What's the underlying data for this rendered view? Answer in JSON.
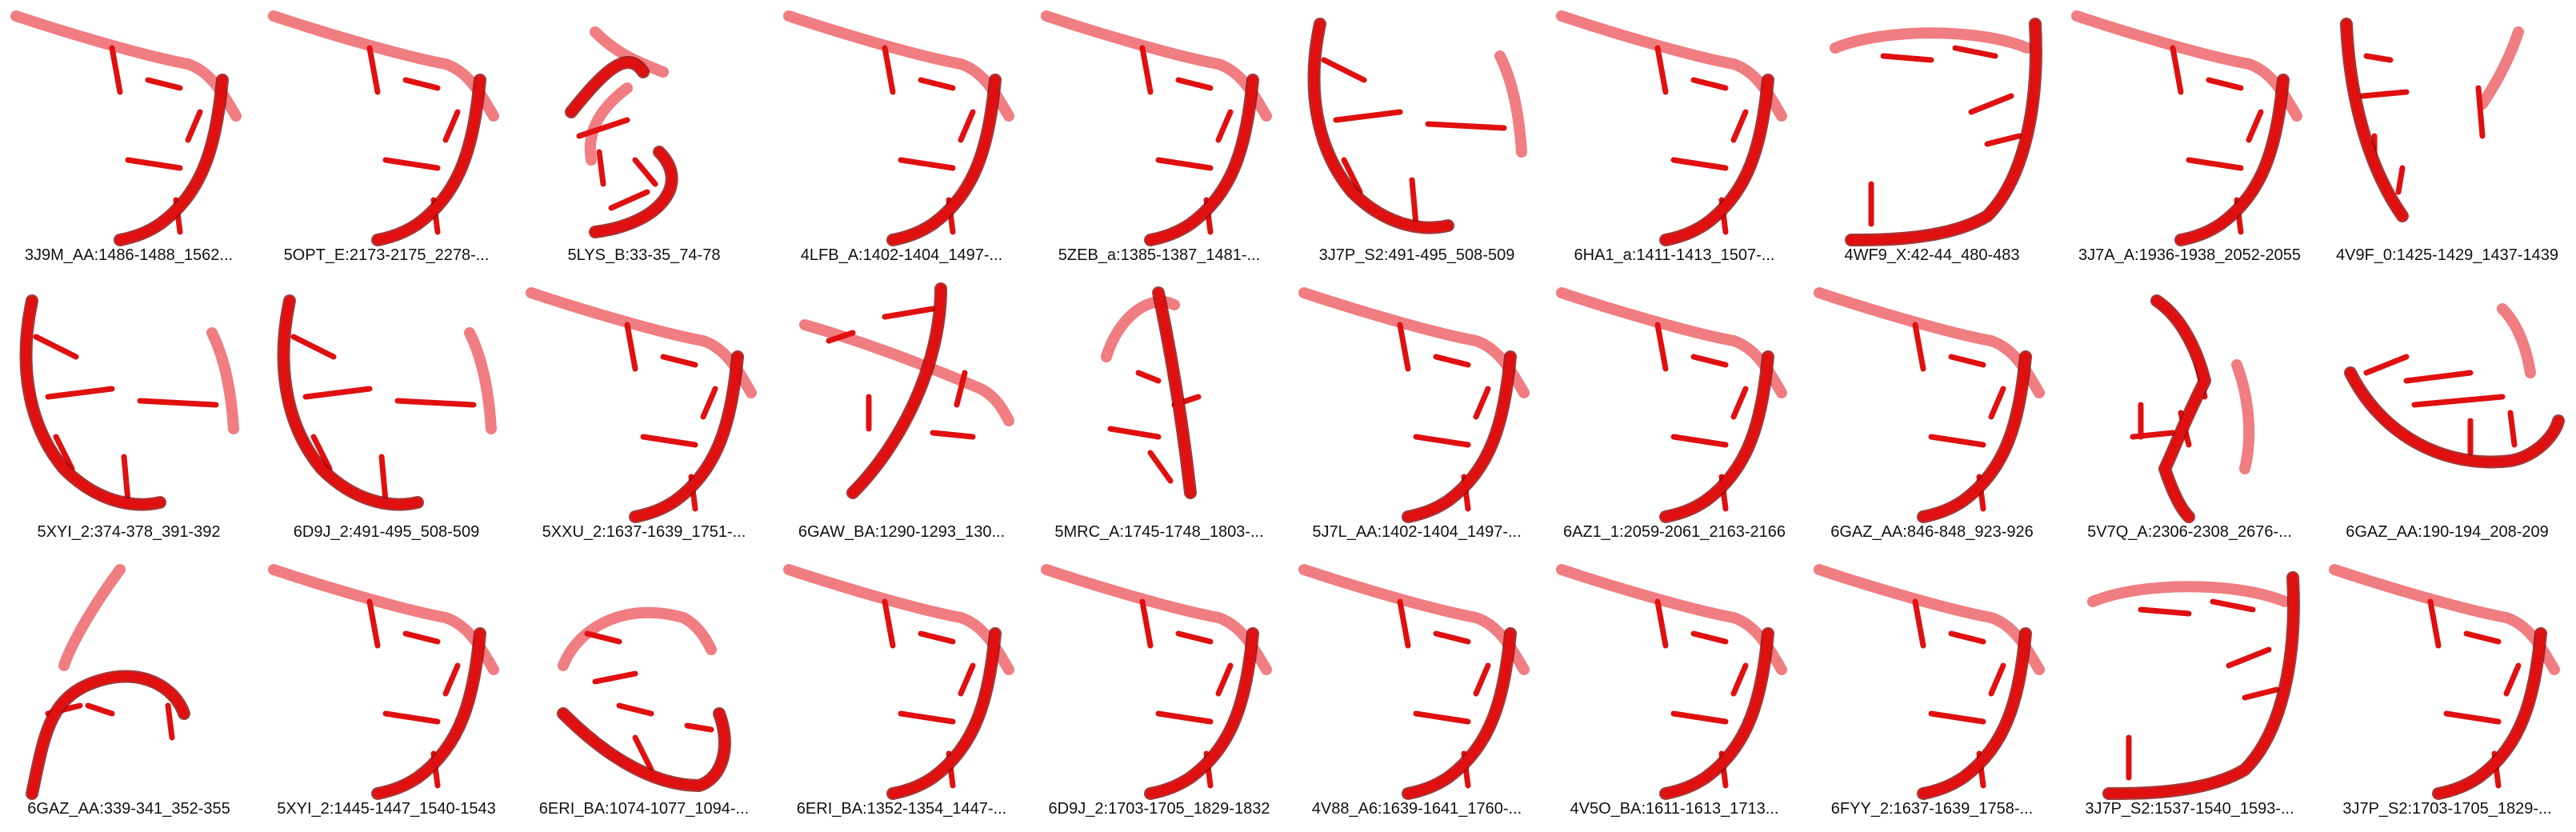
{
  "render": {
    "colors": {
      "strand": "#e01010",
      "strand_light": "#ee6f73",
      "strand_dark": "#8a0a0a",
      "caption_text": "#111111",
      "background": "#ffffff"
    }
  },
  "motifs": [
    {
      "label": "3J9M_AA:1486-1488_1562...",
      "shape": "hook"
    },
    {
      "label": "5OPT_E:2173-2175_2278-...",
      "shape": "hook"
    },
    {
      "label": "5LYS_B:33-35_74-78",
      "shape": "tangle"
    },
    {
      "label": "4LFB_A:1402-1404_1497-...",
      "shape": "hook"
    },
    {
      "label": "5ZEB_a:1385-1387_1481-...",
      "shape": "hook"
    },
    {
      "label": "3J7P_S2:491-495_508-509",
      "shape": "cup"
    },
    {
      "label": "6HA1_a:1411-1413_1507-...",
      "shape": "hook"
    },
    {
      "label": "4WF9_X:42-44_480-483",
      "shape": "arch"
    },
    {
      "label": "3J7A_A:1936-1938_2052-2055",
      "shape": "hook"
    },
    {
      "label": "4V9F_0:1425-1429_1437-1439",
      "shape": "narrow"
    },
    {
      "label": "5XYI_2:374-378_391-392",
      "shape": "cup"
    },
    {
      "label": "6D9J_2:491-495_508-509",
      "shape": "cup"
    },
    {
      "label": "5XXU_2:1637-1639_1751-...",
      "shape": "hook"
    },
    {
      "label": "6GAW_BA:1290-1293_130...",
      "shape": "cross"
    },
    {
      "label": "5MRC_A:1745-1748_1803-...",
      "shape": "cross2"
    },
    {
      "label": "5J7L_AA:1402-1404_1497-...",
      "shape": "hook"
    },
    {
      "label": "6AZ1_1:2059-2061_2163-2166",
      "shape": "hook"
    },
    {
      "label": "6GAZ_AA:846-848_923-926",
      "shape": "hook"
    },
    {
      "label": "5V7Q_A:2306-2308_2676-...",
      "shape": "zigzag"
    },
    {
      "label": "6GAZ_AA:190-194_208-209",
      "shape": "bowl"
    },
    {
      "label": "6GAZ_AA:339-341_352-355",
      "shape": "knot"
    },
    {
      "label": "5XYI_2:1445-1447_1540-1543",
      "shape": "hook"
    },
    {
      "label": "6ERI_BA:1074-1077_1094-...",
      "shape": "loop"
    },
    {
      "label": "6ERI_BA:1352-1354_1447-...",
      "shape": "hook"
    },
    {
      "label": "6D9J_2:1703-1705_1829-1832",
      "shape": "hook"
    },
    {
      "label": "4V88_A6:1639-1641_1760-...",
      "shape": "hook"
    },
    {
      "label": "4V5O_BA:1611-1613_1713...",
      "shape": "hook"
    },
    {
      "label": "6FYY_2:1637-1639_1758-...",
      "shape": "hook"
    },
    {
      "label": "3J7P_S2:1537-1540_1593-...",
      "shape": "arch"
    },
    {
      "label": "3J7P_S2:1703-1705_1829-...",
      "shape": "hook"
    }
  ]
}
